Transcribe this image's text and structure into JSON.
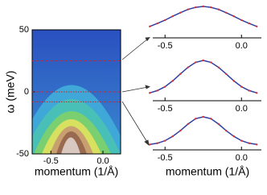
{
  "chart_data": [
    {
      "type": "image",
      "ylabel": "ω (meV)",
      "xlabel": "momentum (1/Å)",
      "xlim": [
        -0.68,
        0.17
      ],
      "xticks": [
        -0.5,
        0.0
      ],
      "xtick_labels": [
        "-0.5",
        "0.0"
      ],
      "ylim": [
        -50,
        50
      ],
      "yticks": [
        50,
        0,
        -50
      ],
      "cuts": [
        25,
        0,
        -8
      ],
      "cut_color": "#d02020"
    },
    {
      "type": "line",
      "xlim": [
        -0.58,
        0.13
      ],
      "xticks": [
        -0.5,
        0.0
      ],
      "xtick_labels": [
        "-0.5",
        "0.0"
      ],
      "ylim": [
        0,
        1
      ],
      "x": [
        -0.6,
        -0.55,
        -0.5,
        -0.45,
        -0.4,
        -0.35,
        -0.3,
        -0.25,
        -0.2,
        -0.15,
        -0.1,
        -0.05,
        0,
        0.05,
        0.1
      ],
      "series": [
        {
          "color": "#3040a0",
          "values": [
            0.33,
            0.43,
            0.54,
            0.67,
            0.79,
            0.9,
            0.97,
            1.0,
            0.97,
            0.9,
            0.79,
            0.67,
            0.54,
            0.43,
            0.33
          ]
        }
      ]
    },
    {
      "type": "line",
      "xlim": [
        -0.58,
        0.13
      ],
      "xticks": [
        -0.5,
        0.0
      ],
      "xtick_labels": [
        "-0.5",
        "0.0"
      ],
      "ylim": [
        0,
        1
      ],
      "x": [
        -0.6,
        -0.55,
        -0.5,
        -0.45,
        -0.4,
        -0.35,
        -0.3,
        -0.25,
        -0.2,
        -0.15,
        -0.1,
        -0.05,
        0,
        0.05,
        0.1
      ],
      "series": [
        {
          "color": "#3040a0",
          "values": [
            0.16,
            0.22,
            0.32,
            0.47,
            0.65,
            0.82,
            0.95,
            1.0,
            0.95,
            0.82,
            0.65,
            0.47,
            0.32,
            0.22,
            0.16
          ]
        }
      ]
    },
    {
      "type": "line",
      "xlim": [
        -0.58,
        0.13
      ],
      "xticks": [
        -0.5,
        0.0
      ],
      "xtick_labels": [
        "-0.5",
        "0.0"
      ],
      "ylim": [
        0,
        1
      ],
      "xlabel": "momentum (1/Å)",
      "x": [
        -0.6,
        -0.55,
        -0.5,
        -0.45,
        -0.4,
        -0.35,
        -0.3,
        -0.25,
        -0.2,
        -0.15,
        -0.1,
        -0.05,
        0,
        0.05,
        0.1
      ],
      "series": [
        {
          "color": "#3040a0",
          "values": [
            0.12,
            0.16,
            0.24,
            0.38,
            0.56,
            0.77,
            0.94,
            1.0,
            0.94,
            0.77,
            0.56,
            0.38,
            0.24,
            0.16,
            0.12
          ]
        }
      ]
    }
  ]
}
